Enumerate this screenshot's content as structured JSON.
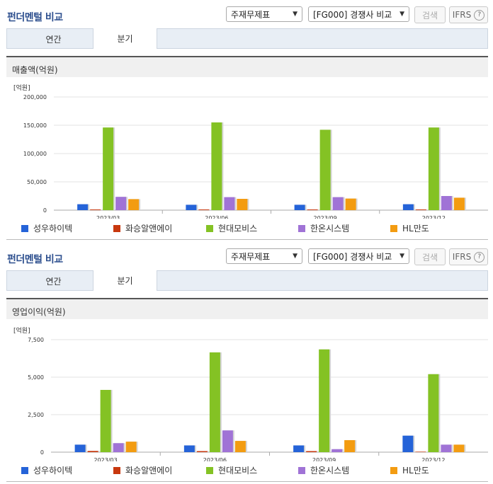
{
  "colors": {
    "series": [
      "#2563d8",
      "#c8380e",
      "#84c224",
      "#a073d6",
      "#f39c11"
    ]
  },
  "sections": [
    {
      "title": "펀더멘털 비교",
      "select_statement": "주재무제표",
      "select_peer": "[FG000] 경쟁사 비교",
      "search_label": "검색",
      "ifrs_label": "IFRS",
      "help_icon": "?",
      "tabs": [
        "연간",
        "분기"
      ],
      "active_tab": 1,
      "panel_title": "매출액(억원)"
    },
    {
      "title": "펀더멘털 비교",
      "select_statement": "주재무제표",
      "select_peer": "[FG000] 경쟁사 비교",
      "search_label": "검색",
      "ifrs_label": "IFRS",
      "help_icon": "?",
      "tabs": [
        "연간",
        "분기"
      ],
      "active_tab": 1,
      "panel_title": "영업이익(억원)"
    }
  ],
  "chart_data": [
    {
      "type": "bar",
      "ylabel": "[억원]",
      "ylim": [
        0,
        200000
      ],
      "yticks": [
        0,
        50000,
        100000,
        150000,
        200000
      ],
      "ytick_labels": [
        "0",
        "50,000",
        "100,000",
        "150,000",
        "200,000"
      ],
      "categories": [
        "2023/03",
        "2023/06",
        "2023/09",
        "2023/12"
      ],
      "series": [
        {
          "name": "성우하이텍",
          "values": [
            10500,
            9500,
            9500,
            10500
          ]
        },
        {
          "name": "화승알앤에이",
          "values": [
            1200,
            1200,
            1200,
            1200
          ]
        },
        {
          "name": "현대모비스",
          "values": [
            146000,
            155000,
            142000,
            146000
          ]
        },
        {
          "name": "한온시스템",
          "values": [
            23500,
            23000,
            23000,
            25000
          ]
        },
        {
          "name": "HL만도",
          "values": [
            19500,
            20000,
            20500,
            22000
          ]
        }
      ],
      "legend": "bottom",
      "grid": true
    },
    {
      "type": "bar",
      "ylabel": "[억원]",
      "ylim": [
        0,
        7500
      ],
      "yticks": [
        0,
        2500,
        5000,
        7500
      ],
      "ytick_labels": [
        "0",
        "2,500",
        "5,000",
        "7,500"
      ],
      "categories": [
        "2023/03",
        "2023/06",
        "2023/09",
        "2023/12"
      ],
      "series": [
        {
          "name": "성우하이텍",
          "values": [
            500,
            450,
            450,
            1100
          ]
        },
        {
          "name": "화승알앤에이",
          "values": [
            80,
            70,
            70,
            30
          ]
        },
        {
          "name": "현대모비스",
          "values": [
            4150,
            6650,
            6850,
            5200
          ]
        },
        {
          "name": "한온시스템",
          "values": [
            600,
            1450,
            200,
            500
          ]
        },
        {
          "name": "HL만도",
          "values": [
            700,
            750,
            800,
            500
          ]
        }
      ],
      "legend": "bottom",
      "grid": true
    }
  ]
}
